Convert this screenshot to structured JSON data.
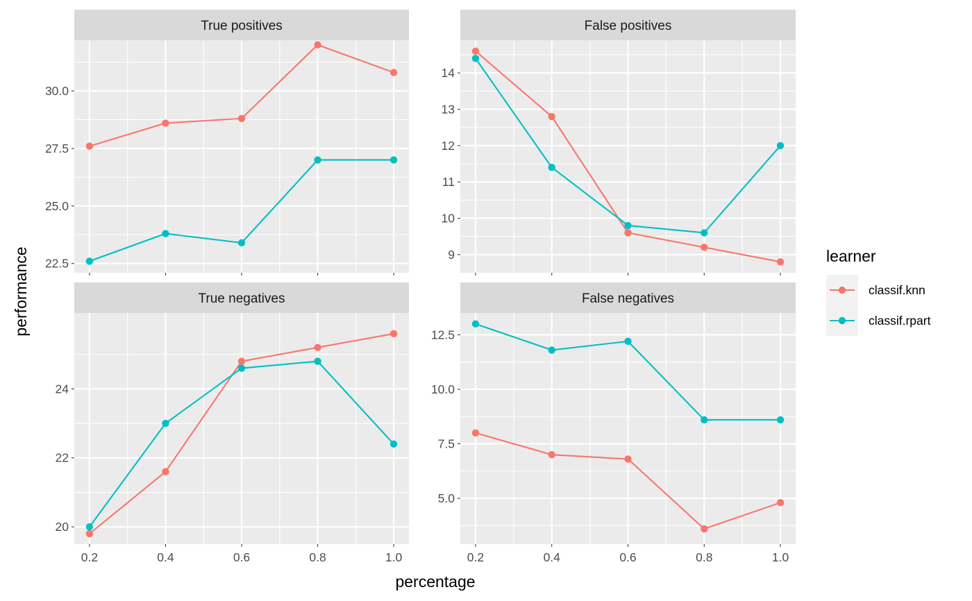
{
  "chart_data": {
    "type": "line",
    "xlabel": "percentage",
    "ylabel": "performance",
    "x_ticks": [
      0.2,
      0.4,
      0.6,
      0.8,
      1.0
    ],
    "x_tick_labels": [
      "0.2",
      "0.4",
      "0.6",
      "0.8",
      "1.0"
    ],
    "legend": {
      "title": "learner",
      "position": "right",
      "entries": [
        "classif.knn",
        "classif.rpart"
      ]
    },
    "colors": {
      "classif.knn": "#F8766D",
      "classif.rpart": "#00BFC4"
    },
    "grid": true,
    "panels": [
      {
        "title": "True positives",
        "ylim": [
          22.1,
          32.2
        ],
        "y_ticks": [
          22.5,
          25.0,
          27.5,
          30.0
        ],
        "y_tick_labels": [
          "22.5",
          "25.0",
          "27.5",
          "30.0"
        ],
        "x": [
          0.2,
          0.4,
          0.6,
          0.8,
          1.0
        ],
        "series": [
          {
            "name": "classif.knn",
            "values": [
              27.6,
              28.6,
              28.8,
              32.0,
              30.8
            ]
          },
          {
            "name": "classif.rpart",
            "values": [
              22.6,
              23.8,
              23.4,
              27.0,
              27.0
            ]
          }
        ]
      },
      {
        "title": "False positives",
        "ylim": [
          8.5,
          14.9
        ],
        "y_ticks": [
          9,
          10,
          11,
          12,
          13,
          14
        ],
        "y_tick_labels": [
          "9",
          "10",
          "11",
          "12",
          "13",
          "14"
        ],
        "x": [
          0.2,
          0.4,
          0.6,
          0.8,
          1.0
        ],
        "series": [
          {
            "name": "classif.knn",
            "values": [
              14.6,
              12.8,
              9.6,
              9.2,
              8.8
            ]
          },
          {
            "name": "classif.rpart",
            "values": [
              14.4,
              11.4,
              9.8,
              9.6,
              12.0
            ]
          }
        ]
      },
      {
        "title": "True negatives",
        "ylim": [
          19.5,
          26.2
        ],
        "y_ticks": [
          20,
          22,
          24
        ],
        "y_tick_labels": [
          "20",
          "22",
          "24"
        ],
        "x": [
          0.2,
          0.4,
          0.6,
          0.8,
          1.0
        ],
        "series": [
          {
            "name": "classif.knn",
            "values": [
              19.8,
              21.6,
              24.8,
              25.2,
              25.6
            ]
          },
          {
            "name": "classif.rpart",
            "values": [
              20.0,
              23.0,
              24.6,
              24.8,
              22.4
            ]
          }
        ]
      },
      {
        "title": "False negatives",
        "ylim": [
          2.9,
          13.5
        ],
        "y_ticks": [
          5.0,
          7.5,
          10.0,
          12.5
        ],
        "y_tick_labels": [
          "5.0",
          "7.5",
          "10.0",
          "12.5"
        ],
        "x": [
          0.2,
          0.4,
          0.6,
          0.8,
          1.0
        ],
        "series": [
          {
            "name": "classif.knn",
            "values": [
              8.0,
              7.0,
              6.8,
              3.6,
              4.8
            ]
          },
          {
            "name": "classif.rpart",
            "values": [
              13.0,
              11.8,
              12.2,
              8.6,
              8.6
            ]
          }
        ]
      }
    ]
  }
}
